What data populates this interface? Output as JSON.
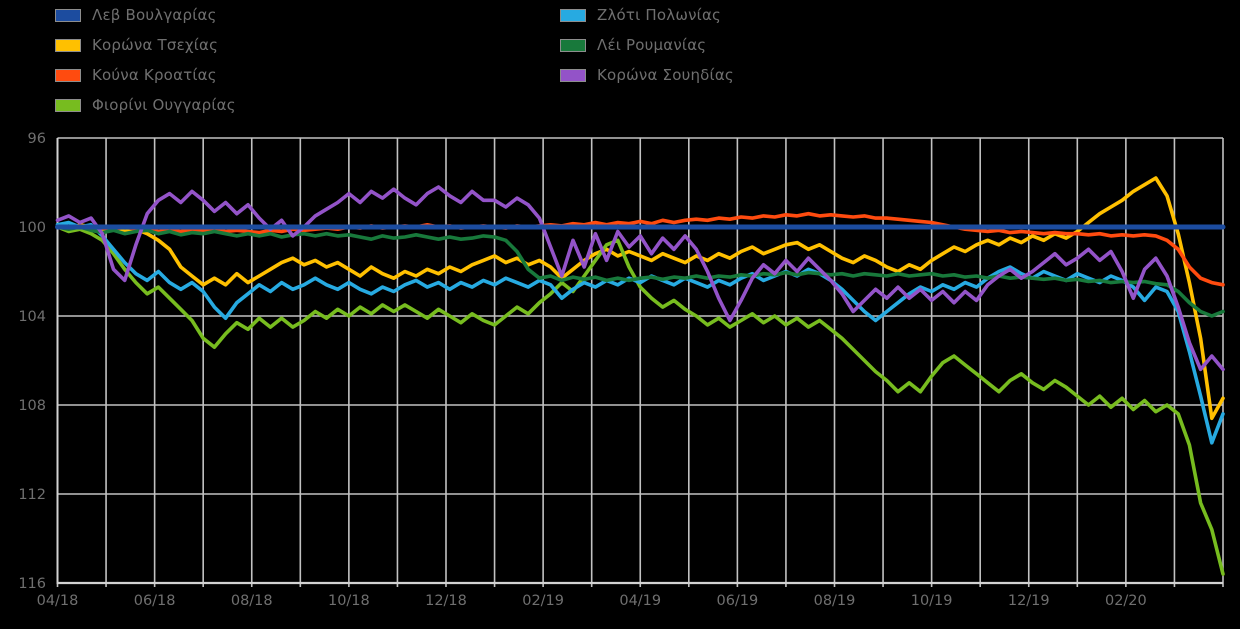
{
  "page": {
    "background": "#000000",
    "text_color": "#6f6f6f",
    "description": "Indexed EUR exchange rates of seven European currencies, Apr 2018 - Apr 2020, inverted y-axis (higher = depreciation)"
  },
  "legend": {
    "position": "top-left, two columns",
    "items": [
      {
        "key": "bgn-lev",
        "label": "Λεβ Βουλγαρίας",
        "color": "#1c4c9f",
        "column": 1
      },
      {
        "key": "czk-koruna",
        "label": "Κορώνα Τσεχίας",
        "color": "#ffc000",
        "column": 1
      },
      {
        "key": "hrk-kuna",
        "label": "Κούνα Κροατίας",
        "color": "#ff4b0f",
        "column": 1
      },
      {
        "key": "huf-forint",
        "label": "Φιορίνι Ουγγαρίας",
        "color": "#77bc1f",
        "column": 1
      },
      {
        "key": "pln-zloty",
        "label": "Ζλότι Πολωνίας",
        "color": "#27aae1",
        "column": 2
      },
      {
        "key": "ron-leu",
        "label": "Λέι Ρουμανίας",
        "color": "#18793b",
        "column": 2
      },
      {
        "key": "sek-krona",
        "label": "Κορώνα Σουηδίας",
        "color": "#9353c8",
        "column": 2
      }
    ]
  },
  "chart_data": {
    "type": "line",
    "title": "",
    "xlabel": "",
    "ylabel": "",
    "grid": true,
    "grid_color": "#c2c2c2",
    "axis_color": "#d2d2d2",
    "tick_text_color": "#6f6f6f",
    "y_ticks": [
      96,
      100,
      104,
      108,
      112,
      116
    ],
    "ylim": [
      96,
      116
    ],
    "y_axis_inverted": true,
    "x_tick_labels": [
      "04/18",
      "06/18",
      "08/18",
      "10/18",
      "12/18",
      "02/19",
      "04/19",
      "06/19",
      "08/19",
      "10/19",
      "12/19",
      "02/20"
    ],
    "x_months_total": 24,
    "x_unit": "weekly samples, Apr 2018 to Apr 2020",
    "draw_order": [
      1,
      2,
      3,
      4,
      5,
      6,
      0
    ],
    "series": [
      {
        "key": "bgn-lev",
        "name": "Λεβ Βουλγαρίας",
        "color": "#1c4c9f",
        "width": 5,
        "values": [
          100.0,
          100.0
        ]
      },
      {
        "key": "czk-koruna",
        "name": "Κορώνα Τσεχίας",
        "color": "#ffc000",
        "width": 3.6,
        "values": [
          100.0,
          100.1,
          99.9,
          100.0,
          100.1,
          100.0,
          100.2,
          100.1,
          100.3,
          100.6,
          101.0,
          101.8,
          102.2,
          102.6,
          102.3,
          102.6,
          102.1,
          102.5,
          102.2,
          101.9,
          101.6,
          101.4,
          101.7,
          101.5,
          101.8,
          101.6,
          101.9,
          102.2,
          101.8,
          102.1,
          102.3,
          102.0,
          102.2,
          101.9,
          102.1,
          101.8,
          102.0,
          101.7,
          101.5,
          101.3,
          101.6,
          101.4,
          101.7,
          101.5,
          101.8,
          102.3,
          101.9,
          101.5,
          101.2,
          101.0,
          101.3,
          101.1,
          101.3,
          101.5,
          101.2,
          101.4,
          101.6,
          101.3,
          101.5,
          101.2,
          101.4,
          101.1,
          100.9,
          101.2,
          101.0,
          100.8,
          100.7,
          101.0,
          100.8,
          101.1,
          101.4,
          101.6,
          101.3,
          101.5,
          101.8,
          102.0,
          101.7,
          101.9,
          101.5,
          101.2,
          100.9,
          101.1,
          100.8,
          100.6,
          100.8,
          100.5,
          100.7,
          100.4,
          100.6,
          100.3,
          100.5,
          100.2,
          99.8,
          99.4,
          99.1,
          98.8,
          98.4,
          98.1,
          97.8,
          98.6,
          100.3,
          102.5,
          105.0,
          108.6,
          107.7
        ]
      },
      {
        "key": "hrk-kuna",
        "name": "Κούνα Κροατίας",
        "color": "#ff4b0f",
        "width": 3.6,
        "values": [
          100.0,
          100.05,
          99.95,
          100.0,
          100.05,
          100.1,
          100.0,
          100.1,
          100.1,
          100.2,
          100.15,
          100.2,
          100.1,
          100.15,
          100.1,
          100.2,
          100.15,
          100.2,
          100.25,
          100.15,
          100.2,
          100.1,
          100.15,
          100.1,
          100.05,
          100.1,
          100.0,
          100.05,
          99.95,
          100.05,
          100.0,
          99.95,
          100.0,
          99.9,
          100.0,
          99.95,
          100.05,
          100.0,
          99.95,
          100.0,
          100.05,
          99.95,
          100.0,
          99.95,
          99.9,
          99.95,
          99.85,
          99.9,
          99.8,
          99.9,
          99.8,
          99.85,
          99.75,
          99.85,
          99.7,
          99.8,
          99.7,
          99.65,
          99.7,
          99.6,
          99.65,
          99.55,
          99.6,
          99.5,
          99.55,
          99.45,
          99.5,
          99.4,
          99.5,
          99.45,
          99.5,
          99.55,
          99.5,
          99.6,
          99.6,
          99.65,
          99.7,
          99.75,
          99.8,
          99.9,
          100.0,
          100.1,
          100.15,
          100.2,
          100.15,
          100.25,
          100.2,
          100.25,
          100.3,
          100.25,
          100.3,
          100.3,
          100.35,
          100.3,
          100.4,
          100.35,
          100.4,
          100.35,
          100.4,
          100.6,
          101.0,
          101.8,
          102.3,
          102.5,
          102.6
        ]
      },
      {
        "key": "huf-forint",
        "name": "Φιορίνι Ουγγαρίας",
        "color": "#77bc1f",
        "width": 3.6,
        "values": [
          100.0,
          100.2,
          100.1,
          100.3,
          100.6,
          101.2,
          101.9,
          102.5,
          103.0,
          102.7,
          103.2,
          103.7,
          104.2,
          105.0,
          105.4,
          104.8,
          104.3,
          104.6,
          104.1,
          104.5,
          104.1,
          104.5,
          104.2,
          103.8,
          104.1,
          103.7,
          104.0,
          103.6,
          103.9,
          103.5,
          103.8,
          103.5,
          103.8,
          104.1,
          103.7,
          104.0,
          104.3,
          103.9,
          104.2,
          104.4,
          104.0,
          103.6,
          103.9,
          103.4,
          103.0,
          102.5,
          102.9,
          102.2,
          101.5,
          100.8,
          100.6,
          101.8,
          102.7,
          103.2,
          103.6,
          103.3,
          103.7,
          104.0,
          104.4,
          104.1,
          104.5,
          104.2,
          103.9,
          104.3,
          104.0,
          104.4,
          104.1,
          104.5,
          104.2,
          104.6,
          105.0,
          105.5,
          106.0,
          106.5,
          106.9,
          107.4,
          107.0,
          107.4,
          106.7,
          106.1,
          105.8,
          106.2,
          106.6,
          107.0,
          107.4,
          106.9,
          106.6,
          107.0,
          107.3,
          106.9,
          107.2,
          107.6,
          108.0,
          107.6,
          108.1,
          107.7,
          108.2,
          107.8,
          108.3,
          108.0,
          108.4,
          109.8,
          112.4,
          113.6,
          115.6
        ]
      },
      {
        "key": "pln-zloty",
        "name": "Ζλότι Πολωνίας",
        "color": "#27aae1",
        "width": 3.6,
        "values": [
          99.9,
          99.8,
          100.0,
          99.9,
          100.4,
          101.0,
          101.6,
          102.1,
          102.4,
          102.0,
          102.5,
          102.8,
          102.5,
          102.9,
          103.6,
          104.1,
          103.4,
          103.0,
          102.6,
          102.9,
          102.5,
          102.8,
          102.6,
          102.3,
          102.6,
          102.8,
          102.5,
          102.8,
          103.0,
          102.7,
          102.9,
          102.6,
          102.4,
          102.7,
          102.5,
          102.8,
          102.5,
          102.7,
          102.4,
          102.6,
          102.3,
          102.5,
          102.7,
          102.4,
          102.6,
          103.2,
          102.8,
          102.5,
          102.7,
          102.4,
          102.6,
          102.3,
          102.5,
          102.2,
          102.4,
          102.6,
          102.3,
          102.5,
          102.7,
          102.4,
          102.6,
          102.3,
          102.1,
          102.4,
          102.2,
          102.0,
          102.2,
          101.9,
          102.1,
          102.4,
          102.8,
          103.3,
          103.8,
          104.2,
          103.8,
          103.4,
          103.0,
          102.7,
          102.9,
          102.6,
          102.8,
          102.5,
          102.7,
          102.3,
          102.0,
          101.8,
          102.1,
          102.3,
          102.0,
          102.2,
          102.4,
          102.1,
          102.3,
          102.5,
          102.2,
          102.4,
          102.7,
          103.3,
          102.7,
          102.9,
          103.8,
          105.6,
          107.6,
          109.7,
          108.4
        ]
      },
      {
        "key": "ron-leu",
        "name": "Λέι Ρουμανίας",
        "color": "#18793b",
        "width": 3.6,
        "values": [
          100.0,
          100.1,
          100.0,
          100.15,
          100.25,
          100.15,
          100.3,
          100.2,
          100.15,
          100.3,
          100.2,
          100.35,
          100.25,
          100.3,
          100.2,
          100.3,
          100.4,
          100.3,
          100.4,
          100.3,
          100.45,
          100.35,
          100.3,
          100.4,
          100.3,
          100.4,
          100.35,
          100.45,
          100.55,
          100.4,
          100.5,
          100.45,
          100.35,
          100.45,
          100.55,
          100.45,
          100.55,
          100.5,
          100.4,
          100.45,
          100.6,
          101.1,
          101.9,
          102.3,
          102.2,
          102.4,
          102.25,
          102.35,
          102.25,
          102.4,
          102.3,
          102.4,
          102.3,
          102.25,
          102.35,
          102.25,
          102.3,
          102.2,
          102.3,
          102.2,
          102.25,
          102.15,
          102.2,
          102.1,
          102.15,
          102.05,
          102.15,
          102.05,
          102.1,
          102.15,
          102.1,
          102.2,
          102.1,
          102.15,
          102.2,
          102.1,
          102.2,
          102.15,
          102.1,
          102.2,
          102.15,
          102.25,
          102.2,
          102.3,
          102.2,
          102.3,
          102.25,
          102.3,
          102.35,
          102.3,
          102.4,
          102.35,
          102.45,
          102.4,
          102.5,
          102.45,
          102.5,
          102.45,
          102.55,
          102.6,
          102.9,
          103.4,
          103.8,
          104.0,
          103.8
        ]
      },
      {
        "key": "sek-krona",
        "name": "Κορώνα Σουηδίας",
        "color": "#9353c8",
        "width": 3.6,
        "values": [
          99.7,
          99.5,
          99.8,
          99.6,
          100.3,
          101.9,
          102.4,
          100.8,
          99.4,
          98.8,
          98.5,
          98.9,
          98.4,
          98.8,
          99.3,
          98.9,
          99.4,
          99.0,
          99.6,
          100.1,
          99.7,
          100.4,
          100.0,
          99.5,
          99.2,
          98.9,
          98.5,
          98.9,
          98.4,
          98.7,
          98.3,
          98.7,
          99.0,
          98.5,
          98.2,
          98.6,
          98.9,
          98.4,
          98.8,
          98.8,
          99.1,
          98.7,
          99.0,
          99.6,
          100.9,
          102.2,
          100.6,
          101.8,
          100.3,
          101.5,
          100.2,
          100.9,
          100.4,
          101.2,
          100.5,
          101.0,
          100.4,
          101.0,
          102.0,
          103.2,
          104.2,
          103.3,
          102.3,
          101.7,
          102.1,
          101.5,
          102.0,
          101.4,
          101.9,
          102.4,
          103.0,
          103.8,
          103.3,
          102.8,
          103.2,
          102.7,
          103.2,
          102.8,
          103.3,
          102.9,
          103.4,
          102.9,
          103.3,
          102.6,
          102.2,
          101.9,
          102.3,
          102.0,
          101.6,
          101.2,
          101.7,
          101.4,
          101.0,
          101.5,
          101.1,
          102.0,
          103.2,
          101.9,
          101.4,
          102.2,
          103.6,
          105.2,
          106.4,
          105.8,
          106.4
        ]
      }
    ]
  }
}
